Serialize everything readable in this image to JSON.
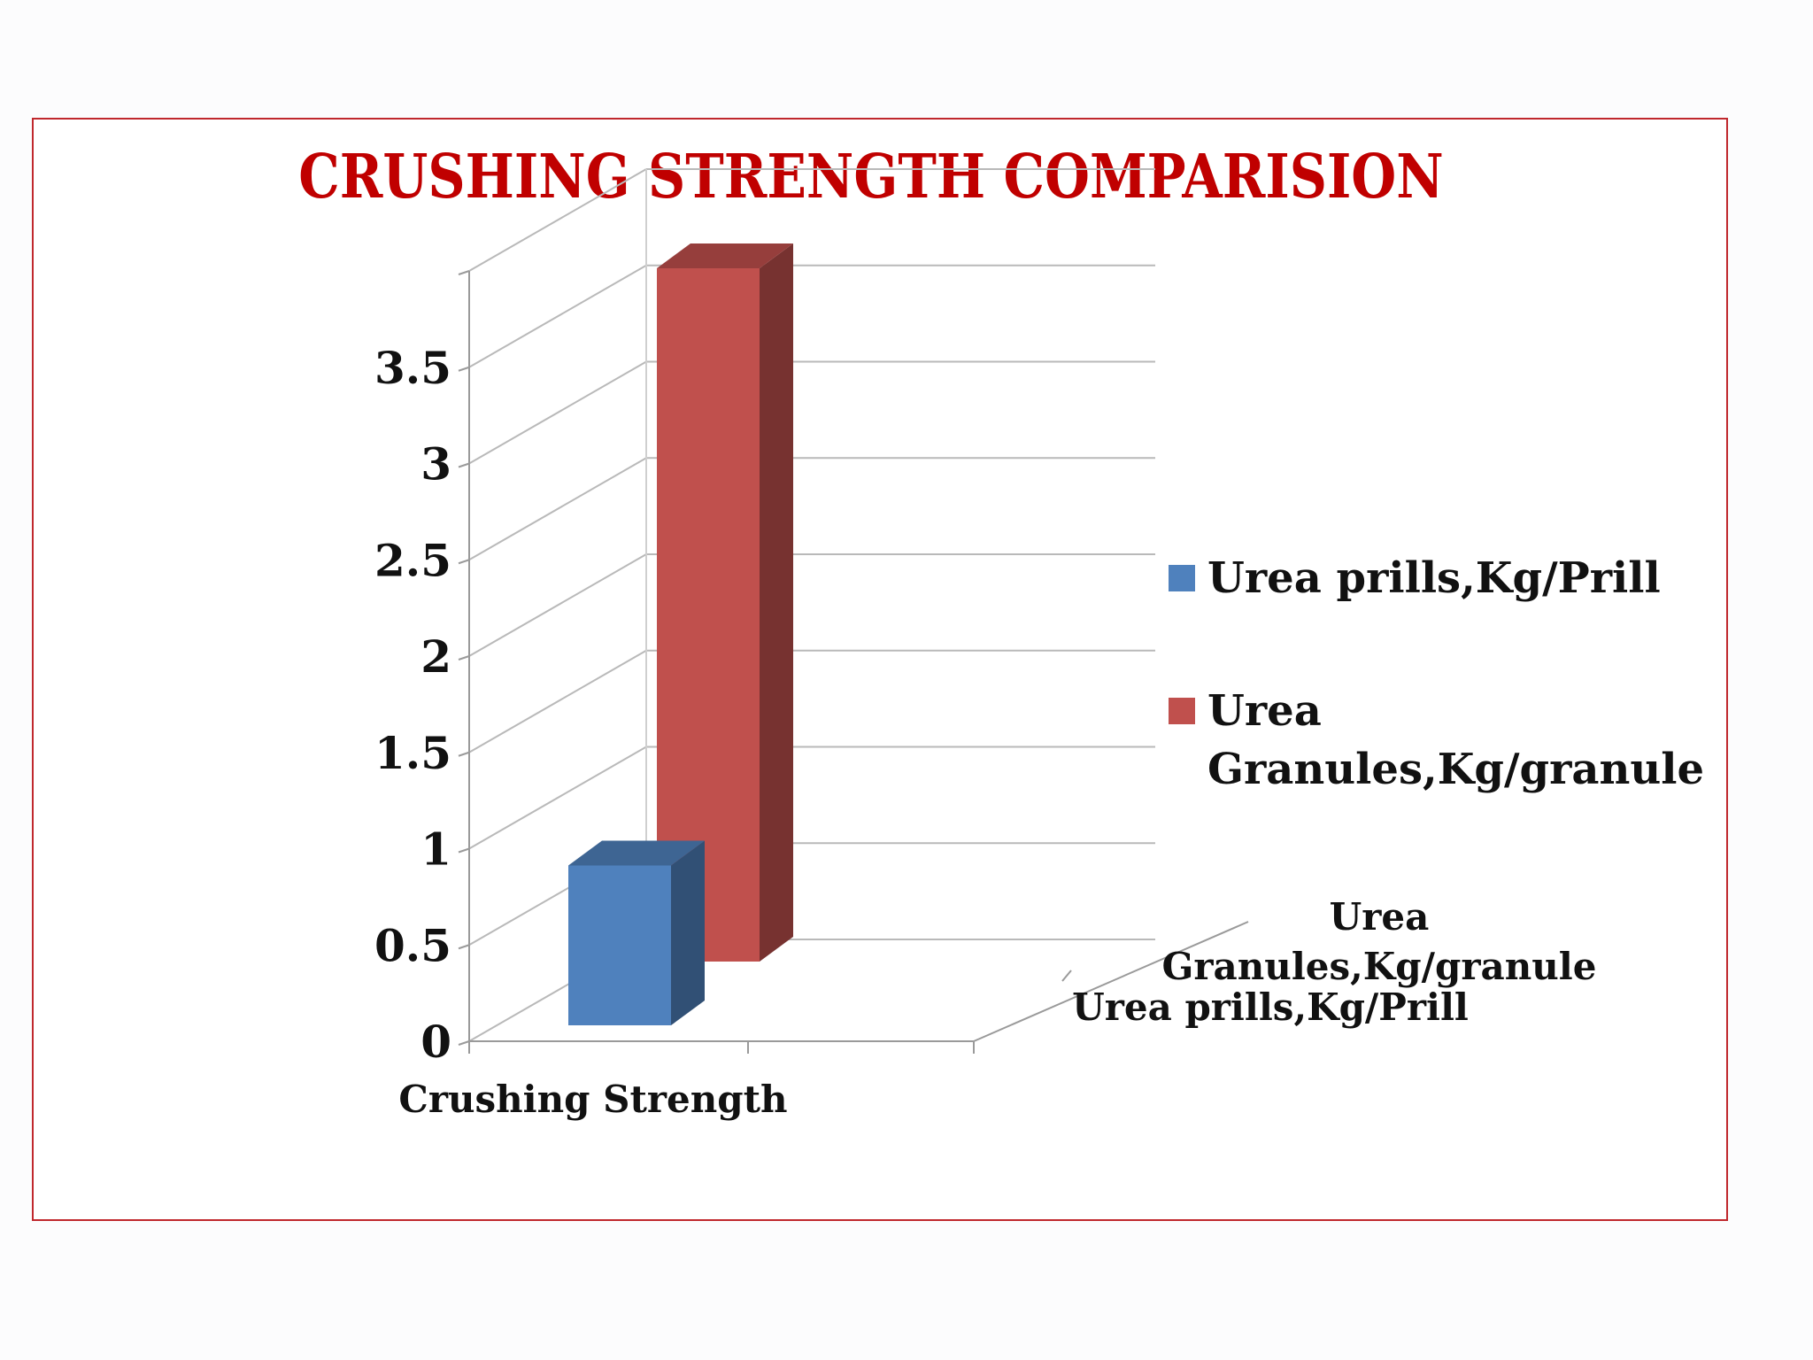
{
  "chart_data": {
    "type": "bar",
    "title": "CRUSHING STRENGTH COMPARISION",
    "categories": [
      "Crushing Strength"
    ],
    "series": [
      {
        "name": "Urea prills,Kg/Prill",
        "values": [
          0.83
        ],
        "color": "#4f81bd"
      },
      {
        "name": "Urea Granules,Kg/granule",
        "values": [
          3.6
        ],
        "color": "#c0504d"
      }
    ],
    "depth_axis_labels": [
      "Urea Granules,Kg/granule",
      "Urea prills,Kg/Prill"
    ],
    "y_ticks": [
      "0",
      "0.5",
      "1",
      "1.5",
      "2",
      "2.5",
      "3",
      "3.5"
    ],
    "ylim": [
      0,
      4
    ],
    "xlabel": "",
    "ylabel": "",
    "grid": true,
    "legend_position": "right",
    "style": "3d-column",
    "frame_color": "#c0282d",
    "title_color": "#c00000"
  },
  "legend": {
    "items": [
      {
        "label": "Urea prills,Kg/Prill",
        "color": "#4f81bd"
      },
      {
        "label": "Urea Granules,Kg/granule",
        "color": "#c0504d"
      }
    ]
  }
}
